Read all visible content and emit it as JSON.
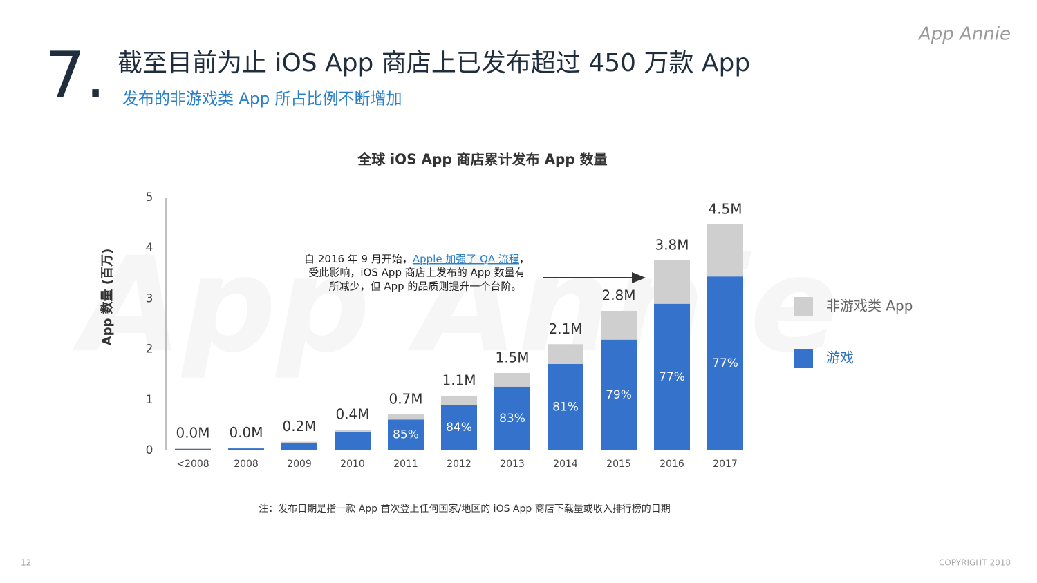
{
  "slide": {
    "number": "7.",
    "title": "截至目前为止 iOS App 商店上已发布超过 450 万款 App",
    "subtitle": "发布的非游戏类 App 所占比例不断增加",
    "logo": "App Annie",
    "watermark": "App Annie",
    "note": "注：发布日期是指一款 App 首次登上任何国家/地区的 iOS App 商店下载量或收入排行榜的日期",
    "page": "12",
    "copyright": "COPYRIGHT 2018"
  },
  "chart_data": {
    "type": "stacked_bar",
    "title": "全球 iOS App 商店累计发布 App 数量",
    "y_label": "App 数量 (百万)",
    "categories": [
      "<2008",
      "2008",
      "2009",
      "2010",
      "2011",
      "2012",
      "2013",
      "2014",
      "2015",
      "2016",
      "2017"
    ],
    "series": [
      {
        "name": "游戏",
        "color": "#3472cc",
        "values": [
          0.03,
          0.04,
          0.15,
          0.37,
          0.61,
          0.9,
          1.26,
          1.71,
          2.19,
          2.9,
          3.44
        ]
      },
      {
        "name": "非游戏类 App",
        "color": "#d0cfd0",
        "values": [
          0.01,
          0.01,
          0.02,
          0.04,
          0.1,
          0.18,
          0.27,
          0.39,
          0.57,
          0.86,
          1.03
        ]
      }
    ],
    "totals": {
      "values": [
        0.04,
        0.05,
        0.17,
        0.41,
        0.71,
        1.08,
        1.53,
        2.1,
        2.76,
        3.76,
        4.47
      ],
      "value_labels": [
        "0.0M",
        "0.0M",
        "0.2M",
        "0.4M",
        "0.7M",
        "1.1M",
        "1.5M",
        "2.1M",
        "2.8M",
        "3.8M",
        "4.5M"
      ]
    },
    "game_share": {
      "values": [
        null,
        null,
        null,
        null,
        85,
        84,
        83,
        81,
        79,
        77,
        77
      ],
      "value_labels": [
        null,
        null,
        null,
        null,
        "85%",
        "84%",
        "83%",
        "81%",
        "79%",
        "77%",
        "77%"
      ]
    },
    "ylim": [
      0,
      5
    ],
    "yticks": [
      0,
      1,
      2,
      3,
      4,
      5
    ],
    "grid": false,
    "legend": "right",
    "annotation": {
      "line1_a": "自 2016 年 9 月开始，",
      "line1_link": "Apple 加强了 QA 流程",
      "line1_b": "，",
      "line2": "受此影响，iOS App 商店上发布的 App 数量有",
      "line3": "所减少，但 App 的品质则提升一个台阶。"
    }
  }
}
